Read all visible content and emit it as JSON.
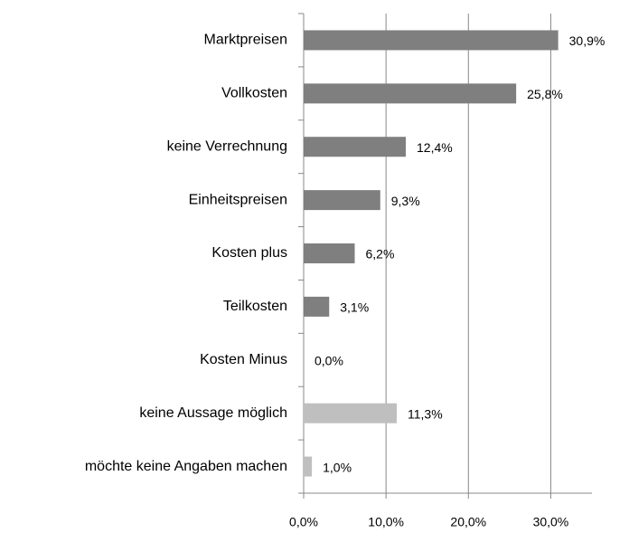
{
  "chart_data": {
    "type": "hbar",
    "categories": [
      "Marktpreisen",
      "Vollkosten",
      "keine Verrechnung",
      "Einheitspreisen",
      "Kosten plus",
      "Teilkosten",
      "Kosten Minus",
      "keine Aussage möglich",
      "möchte keine Angaben machen"
    ],
    "values": [
      30.9,
      25.8,
      12.4,
      9.3,
      6.2,
      3.1,
      0.0,
      11.3,
      1.0
    ],
    "value_labels": [
      "30,9%",
      "25,8%",
      "12,4%",
      "9,3%",
      "6,2%",
      "3,1%",
      "0,0%",
      "11,3%",
      "1,0%"
    ],
    "colors": [
      "#7f7f7f",
      "#7f7f7f",
      "#7f7f7f",
      "#7f7f7f",
      "#7f7f7f",
      "#7f7f7f",
      "#7f7f7f",
      "#bfbfbf",
      "#bfbfbf"
    ],
    "xlim": [
      0,
      35
    ],
    "xticks": [
      {
        "value": 0,
        "label": "0,0%"
      },
      {
        "value": 10,
        "label": "10,0%"
      },
      {
        "value": 20,
        "label": "20,0%"
      },
      {
        "value": 30,
        "label": "30,0%"
      }
    ],
    "grid": true
  }
}
